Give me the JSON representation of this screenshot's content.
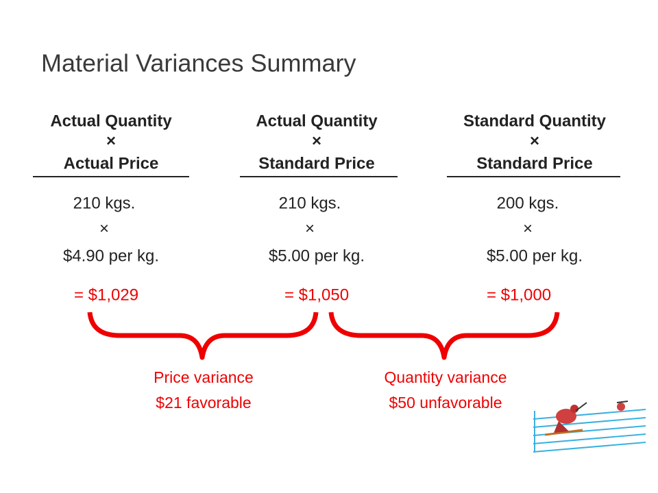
{
  "title": "Material Variances Summary",
  "columns": [
    {
      "header": [
        "Actual Quantity",
        "×",
        "Actual Price"
      ],
      "quantity": "210 kgs.",
      "times": "×",
      "price": "$4.90 per kg.",
      "result": "= $1,029"
    },
    {
      "header": [
        "Actual Quantity",
        "×",
        "Standard Price"
      ],
      "quantity": "210 kgs.",
      "times": "×",
      "price": "$5.00 per kg.",
      "result": "= $1,050"
    },
    {
      "header": [
        "Standard Quantity",
        "×",
        "Standard Price"
      ],
      "quantity": "200 kgs.",
      "times": "×",
      "price": "$5.00 per kg.",
      "result": "= $1,000"
    }
  ],
  "variances": [
    {
      "label": "Price variance",
      "amount": "$21 favorable"
    },
    {
      "label": "Quantity variance",
      "amount": "$50 unfavorable"
    }
  ]
}
